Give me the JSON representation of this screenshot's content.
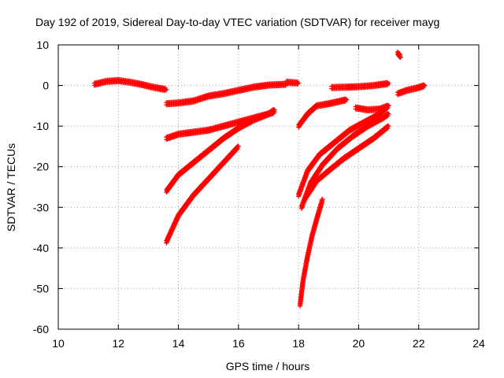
{
  "chart_data": {
    "type": "scatter",
    "title": "Day 192 of 2019, Sidereal Day-to-day VTEC variation (SDTVAR) for receiver mayg",
    "xlabel": "GPS time / hours",
    "ylabel": "SDTVAR / TECUs",
    "xlim": [
      10,
      24
    ],
    "ylim": [
      -60,
      10
    ],
    "xticks": [
      10,
      12,
      14,
      16,
      18,
      20,
      22,
      24
    ],
    "yticks": [
      -60,
      -50,
      -40,
      -30,
      -20,
      -10,
      0,
      10
    ],
    "grid": true,
    "marker": "plus",
    "color": "#ff0000",
    "series": [
      {
        "name": "arc-1",
        "x": [
          11.2,
          11.6,
          12.0,
          12.4,
          12.8,
          13.2,
          13.6
        ],
        "y": [
          0.3,
          1.0,
          1.2,
          0.8,
          0.2,
          -0.5,
          -1.0
        ]
      },
      {
        "name": "arc-2",
        "x": [
          13.6,
          14.0,
          14.5,
          15.0,
          15.5,
          16.0,
          16.5,
          17.0,
          17.6
        ],
        "y": [
          -4.5,
          -4.3,
          -3.8,
          -2.6,
          -2.0,
          -1.2,
          -0.4,
          0.1,
          0.3
        ]
      },
      {
        "name": "arc-3",
        "x": [
          17.6,
          18.0
        ],
        "y": [
          0.8,
          0.6
        ]
      },
      {
        "name": "arc-4",
        "x": [
          13.6,
          14.0,
          14.5,
          15.0,
          15.5,
          16.0,
          16.5,
          17.0,
          17.2
        ],
        "y": [
          -13.0,
          -12.0,
          -11.5,
          -11.0,
          -10.0,
          -9.0,
          -8.0,
          -7.0,
          -6.5
        ]
      },
      {
        "name": "arc-5",
        "x": [
          13.6,
          14.0,
          14.5,
          15.0,
          15.5,
          16.0,
          16.5,
          17.0,
          17.2
        ],
        "y": [
          -26.0,
          -22.0,
          -19.0,
          -16.0,
          -13.0,
          -10.5,
          -8.5,
          -7.0,
          -6.0
        ]
      },
      {
        "name": "arc-6",
        "x": [
          13.6,
          14.0,
          14.5,
          15.0,
          15.5,
          16.0
        ],
        "y": [
          -38.5,
          -32.0,
          -27.0,
          -23.0,
          -19.0,
          -15.0
        ]
      },
      {
        "name": "arc-7",
        "x": [
          18.0,
          18.3,
          18.6,
          19.0,
          19.3,
          19.6
        ],
        "y": [
          -10.0,
          -7.0,
          -5.0,
          -4.5,
          -4.0,
          -3.5
        ]
      },
      {
        "name": "arc-8",
        "x": [
          19.1,
          19.6,
          20.0,
          20.5,
          21.0
        ],
        "y": [
          -0.5,
          -0.4,
          -0.3,
          0.0,
          0.5
        ]
      },
      {
        "name": "arc-9",
        "x": [
          19.9,
          20.3,
          20.7,
          21.0
        ],
        "y": [
          -5.5,
          -6.0,
          -5.8,
          -5.0
        ]
      },
      {
        "name": "arc-10",
        "x": [
          18.0,
          18.3,
          18.7,
          19.2,
          19.7,
          20.2,
          20.7,
          21.0
        ],
        "y": [
          -27.0,
          -21.0,
          -17.0,
          -14.0,
          -11.0,
          -9.0,
          -7.0,
          -5.0
        ]
      },
      {
        "name": "arc-11",
        "x": [
          18.1,
          18.4,
          18.8,
          19.3,
          19.8,
          20.3,
          20.8,
          21.0
        ],
        "y": [
          -30.0,
          -24.0,
          -19.5,
          -15.5,
          -12.5,
          -10.0,
          -8.0,
          -7.0
        ]
      },
      {
        "name": "arc-12",
        "x": [
          18.2,
          18.6,
          19.0,
          19.5,
          20.0,
          20.5,
          21.0
        ],
        "y": [
          -28.0,
          -23.5,
          -21.0,
          -18.0,
          -15.5,
          -13.0,
          -10.0
        ]
      },
      {
        "name": "arc-13",
        "x": [
          18.05,
          18.15,
          18.3,
          18.45,
          18.6,
          18.8
        ],
        "y": [
          -54.0,
          -48.0,
          -42.0,
          -37.0,
          -33.0,
          -28.0
        ]
      },
      {
        "name": "arc-14",
        "x": [
          21.3,
          21.4
        ],
        "y": [
          8.0,
          7.0
        ]
      },
      {
        "name": "arc-15",
        "x": [
          21.3,
          21.6,
          22.0,
          22.2
        ],
        "y": [
          -2.0,
          -1.2,
          -0.5,
          0.0
        ]
      }
    ]
  }
}
